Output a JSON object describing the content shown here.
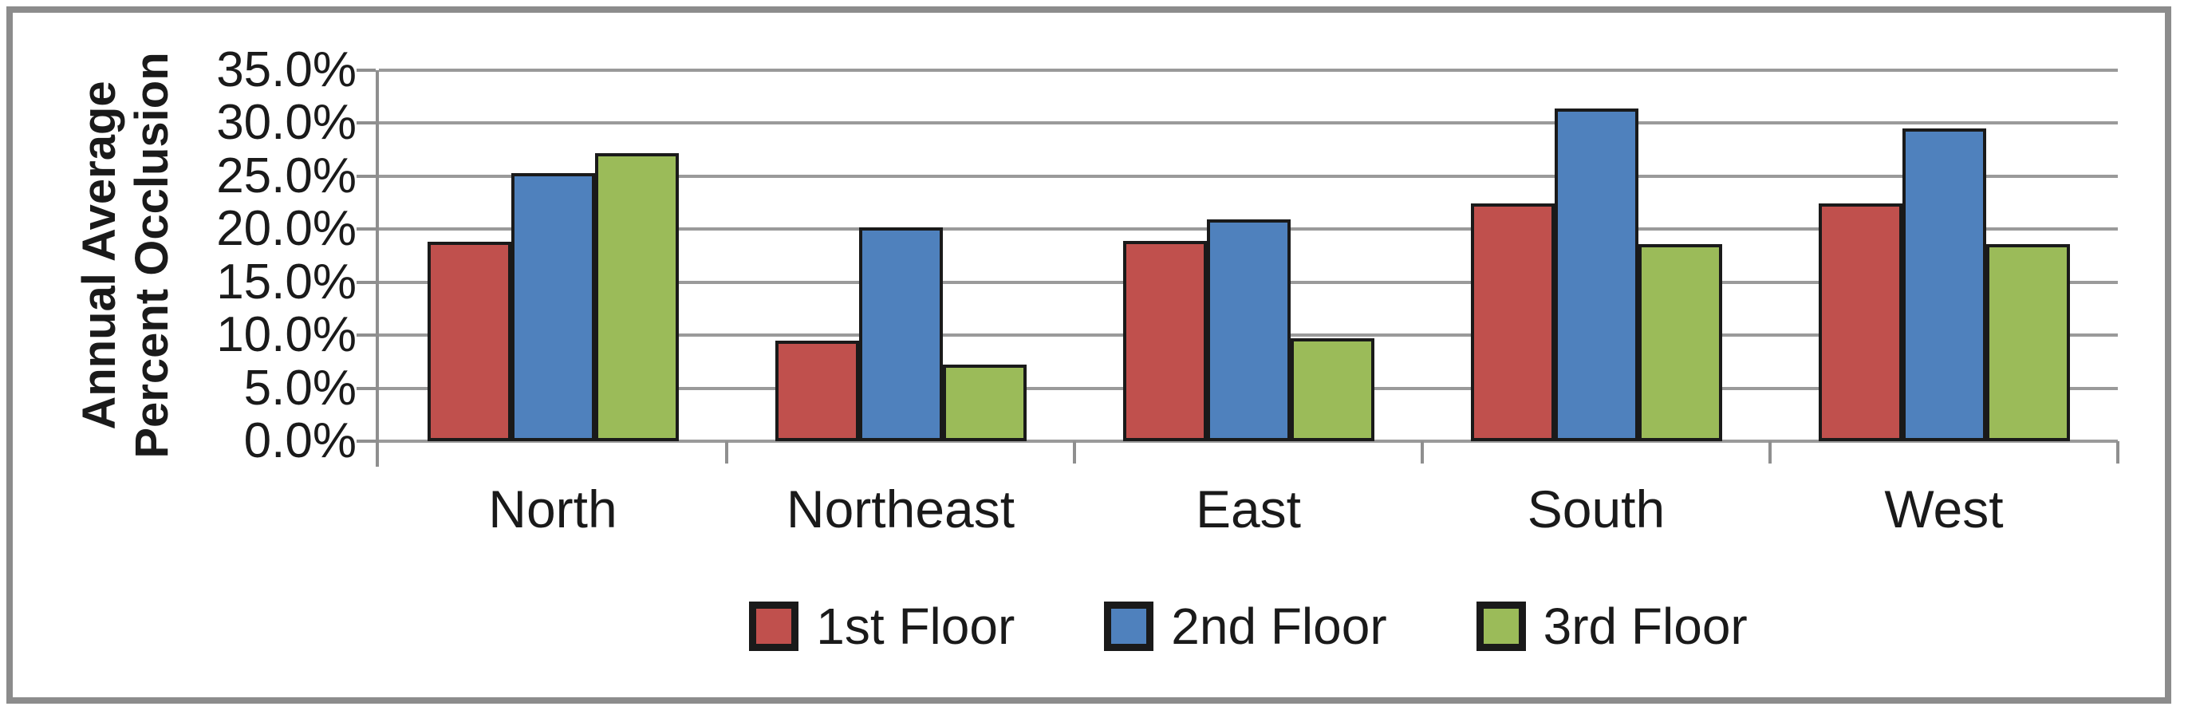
{
  "figure": {
    "border_color": "#8c8c8c",
    "background": "#ffffff"
  },
  "chart_data": {
    "type": "bar",
    "title": "",
    "categories": [
      "North",
      "Northeast",
      "East",
      "South",
      "West"
    ],
    "series": [
      {
        "name": "1st Floor",
        "color": "#C0504D",
        "values": [
          18.8,
          9.5,
          18.9,
          22.4,
          22.4
        ]
      },
      {
        "name": "2nd Floor",
        "color": "#4F81BD",
        "values": [
          25.3,
          20.2,
          20.9,
          31.4,
          29.5
        ]
      },
      {
        "name": "3rd Floor",
        "color": "#9BBB59",
        "values": [
          27.2,
          7.2,
          9.7,
          18.6,
          18.6
        ]
      }
    ],
    "xlabel": "",
    "ylabel": "Annual Average Percent Occlusion",
    "ylabel_lines": [
      "Annual Average",
      "Percent Occlusion"
    ],
    "ylim": [
      0,
      35
    ],
    "ytick_step": 5,
    "ytick_labels": [
      "0.0%",
      "5.0%",
      "10.0%",
      "15.0%",
      "20.0%",
      "25.0%",
      "30.0%",
      "35.0%"
    ],
    "grid": true,
    "legend_position": "bottom",
    "gridline_color": "#9a9a9a",
    "axis_color": "#8f8f8f",
    "bar_border_color": "#1a1a1a"
  }
}
